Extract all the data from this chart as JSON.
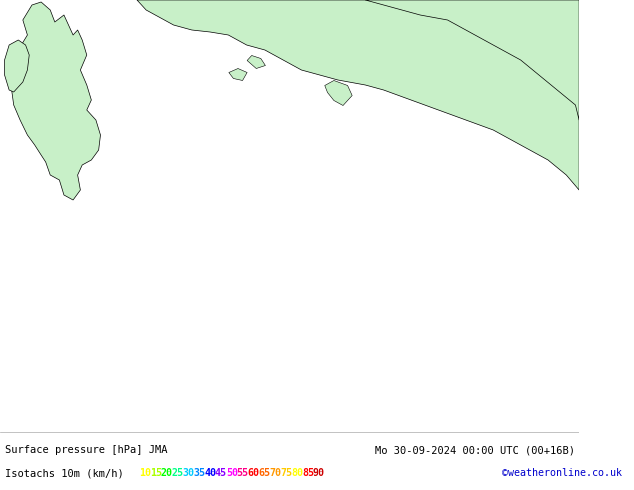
{
  "title_left": "Surface pressure [hPa] JMA",
  "title_right": "Mo 30-09-2024 00:00 UTC (00+16B)",
  "legend_label": "Isotachs 10m (km/h)",
  "copyright": "©weatheronline.co.uk",
  "legend_values": [
    10,
    15,
    20,
    25,
    30,
    35,
    40,
    45,
    50,
    55,
    60,
    65,
    70,
    75,
    80,
    85,
    90
  ],
  "legend_colors": [
    "#ffff00",
    "#c8ff00",
    "#00ff00",
    "#00ff96",
    "#00c8ff",
    "#0096ff",
    "#0000ff",
    "#9600ff",
    "#ff00ff",
    "#ff0096",
    "#ff0000",
    "#ff6400",
    "#ff9600",
    "#ffc800",
    "#ffff00",
    "#ff0000",
    "#c80000"
  ],
  "background_color": "#e8f0e8",
  "land_color": "#c8f0c8",
  "sea_color": "#e8eef8",
  "border_color": "#000000",
  "map_background": "#d8e8d8",
  "fig_bg": "#ffffff",
  "bottom_bar_bg": "#ffffff",
  "bottom_text_color": "#000000",
  "figsize": [
    6.34,
    4.9
  ],
  "dpi": 100
}
